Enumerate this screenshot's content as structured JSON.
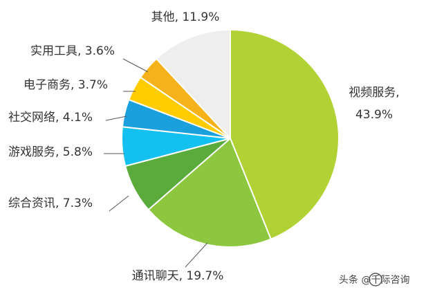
{
  "chart_data": {
    "type": "pie",
    "slices": [
      {
        "name": "视频服务",
        "value": 43.9,
        "label": "视频服务,",
        "value_text": "43.9%",
        "color": "#b1d235"
      },
      {
        "name": "通讯聊天",
        "value": 19.7,
        "label": "通讯聊天, 19.7%",
        "color": "#8dc63f"
      },
      {
        "name": "综合资讯",
        "value": 7.3,
        "label": "综合资讯, 7.3%",
        "color": "#5aaa3c"
      },
      {
        "name": "游戏服务",
        "value": 5.8,
        "label": "游戏服务, 5.8%",
        "color": "#14c0f0"
      },
      {
        "name": "社交网络",
        "value": 4.1,
        "label": "社交网络, 4.1%",
        "color": "#1aa0dc"
      },
      {
        "name": "电子商务",
        "value": 3.7,
        "label": "电子商务, 3.7%",
        "color": "#ffcc00"
      },
      {
        "name": "实用工具",
        "value": 3.6,
        "label": "实用工具, 3.6%",
        "color": "#f6b21a"
      },
      {
        "name": "其他",
        "value": 11.9,
        "label": "其他, 11.9%",
        "color": "#eeeeee"
      }
    ]
  },
  "watermark": {
    "text": "头条 @千际咨询"
  }
}
